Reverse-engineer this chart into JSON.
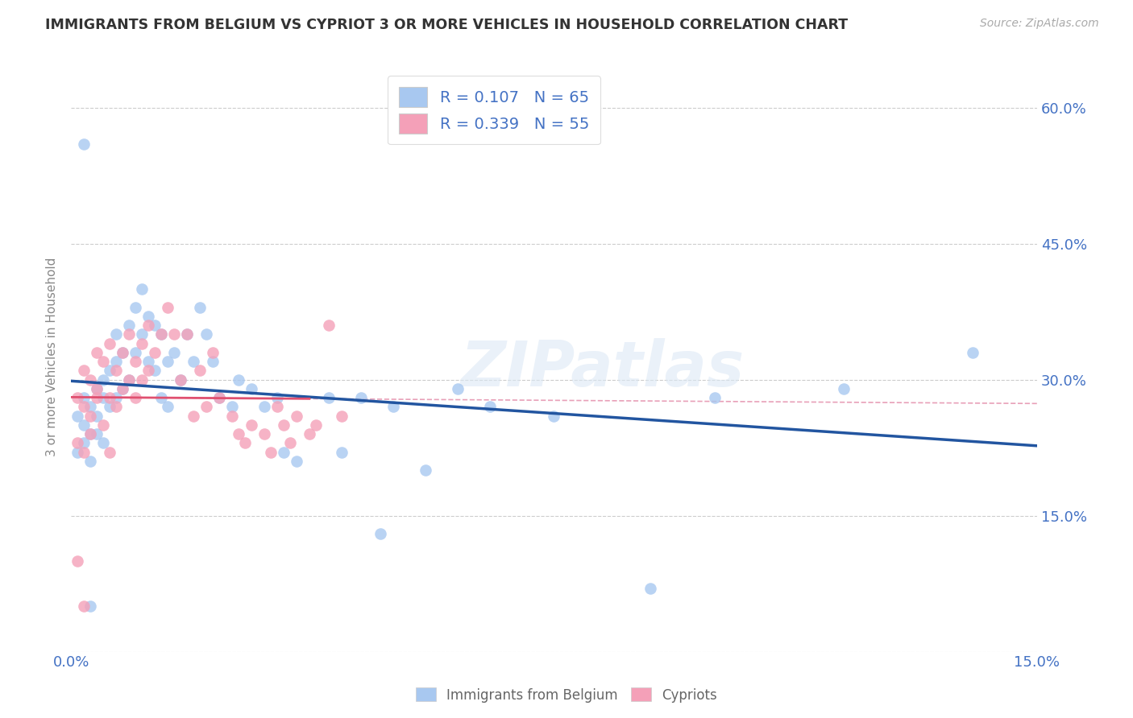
{
  "title": "IMMIGRANTS FROM BELGIUM VS CYPRIOT 3 OR MORE VEHICLES IN HOUSEHOLD CORRELATION CHART",
  "source": "Source: ZipAtlas.com",
  "ylabel": "3 or more Vehicles in Household",
  "xlim": [
    0.0,
    0.15
  ],
  "ylim": [
    0.0,
    0.65
  ],
  "xticks": [
    0.0,
    0.03,
    0.06,
    0.09,
    0.12,
    0.15
  ],
  "yticks": [
    0.0,
    0.15,
    0.3,
    0.45,
    0.6
  ],
  "right_ytick_labels": [
    "",
    "15.0%",
    "30.0%",
    "45.0%",
    "60.0%"
  ],
  "xtick_labels": [
    "0.0%",
    "",
    "",
    "",
    "",
    "15.0%"
  ],
  "legend_r_blue": "R = 0.107",
  "legend_n_blue": "N = 65",
  "legend_r_pink": "R = 0.339",
  "legend_n_pink": "N = 55",
  "blue_color": "#a8c8f0",
  "pink_color": "#f4a0b8",
  "blue_line_color": "#2255a0",
  "pink_line_color": "#e05070",
  "pink_dash_color": "#e8a0b8",
  "watermark": "ZIPatlas",
  "blue_scatter_x": [
    0.001,
    0.001,
    0.002,
    0.002,
    0.002,
    0.003,
    0.003,
    0.003,
    0.004,
    0.004,
    0.004,
    0.005,
    0.005,
    0.005,
    0.006,
    0.006,
    0.007,
    0.007,
    0.007,
    0.008,
    0.008,
    0.009,
    0.009,
    0.01,
    0.01,
    0.011,
    0.011,
    0.012,
    0.012,
    0.013,
    0.013,
    0.014,
    0.014,
    0.015,
    0.015,
    0.016,
    0.017,
    0.018,
    0.019,
    0.02,
    0.021,
    0.022,
    0.023,
    0.025,
    0.026,
    0.028,
    0.03,
    0.032,
    0.033,
    0.035,
    0.04,
    0.042,
    0.045,
    0.048,
    0.05,
    0.055,
    0.06,
    0.065,
    0.075,
    0.09,
    0.1,
    0.12,
    0.14,
    0.002,
    0.003
  ],
  "blue_scatter_y": [
    0.26,
    0.22,
    0.25,
    0.28,
    0.23,
    0.27,
    0.24,
    0.21,
    0.29,
    0.26,
    0.24,
    0.28,
    0.23,
    0.3,
    0.31,
    0.27,
    0.35,
    0.32,
    0.28,
    0.33,
    0.29,
    0.36,
    0.3,
    0.38,
    0.33,
    0.4,
    0.35,
    0.37,
    0.32,
    0.36,
    0.31,
    0.35,
    0.28,
    0.32,
    0.27,
    0.33,
    0.3,
    0.35,
    0.32,
    0.38,
    0.35,
    0.32,
    0.28,
    0.27,
    0.3,
    0.29,
    0.27,
    0.28,
    0.22,
    0.21,
    0.28,
    0.22,
    0.28,
    0.13,
    0.27,
    0.2,
    0.29,
    0.27,
    0.26,
    0.07,
    0.28,
    0.29,
    0.33,
    0.56,
    0.05
  ],
  "pink_scatter_x": [
    0.001,
    0.001,
    0.002,
    0.002,
    0.002,
    0.003,
    0.003,
    0.003,
    0.004,
    0.004,
    0.004,
    0.005,
    0.005,
    0.006,
    0.006,
    0.006,
    0.007,
    0.007,
    0.008,
    0.008,
    0.009,
    0.009,
    0.01,
    0.01,
    0.011,
    0.011,
    0.012,
    0.012,
    0.013,
    0.014,
    0.015,
    0.016,
    0.017,
    0.018,
    0.019,
    0.02,
    0.021,
    0.022,
    0.023,
    0.025,
    0.026,
    0.027,
    0.028,
    0.03,
    0.031,
    0.032,
    0.033,
    0.034,
    0.035,
    0.037,
    0.038,
    0.04,
    0.042,
    0.001,
    0.002
  ],
  "pink_scatter_y": [
    0.28,
    0.23,
    0.31,
    0.27,
    0.22,
    0.3,
    0.26,
    0.24,
    0.29,
    0.33,
    0.28,
    0.32,
    0.25,
    0.34,
    0.28,
    0.22,
    0.31,
    0.27,
    0.33,
    0.29,
    0.35,
    0.3,
    0.32,
    0.28,
    0.34,
    0.3,
    0.36,
    0.31,
    0.33,
    0.35,
    0.38,
    0.35,
    0.3,
    0.35,
    0.26,
    0.31,
    0.27,
    0.33,
    0.28,
    0.26,
    0.24,
    0.23,
    0.25,
    0.24,
    0.22,
    0.27,
    0.25,
    0.23,
    0.26,
    0.24,
    0.25,
    0.36,
    0.26,
    0.1,
    0.05
  ]
}
